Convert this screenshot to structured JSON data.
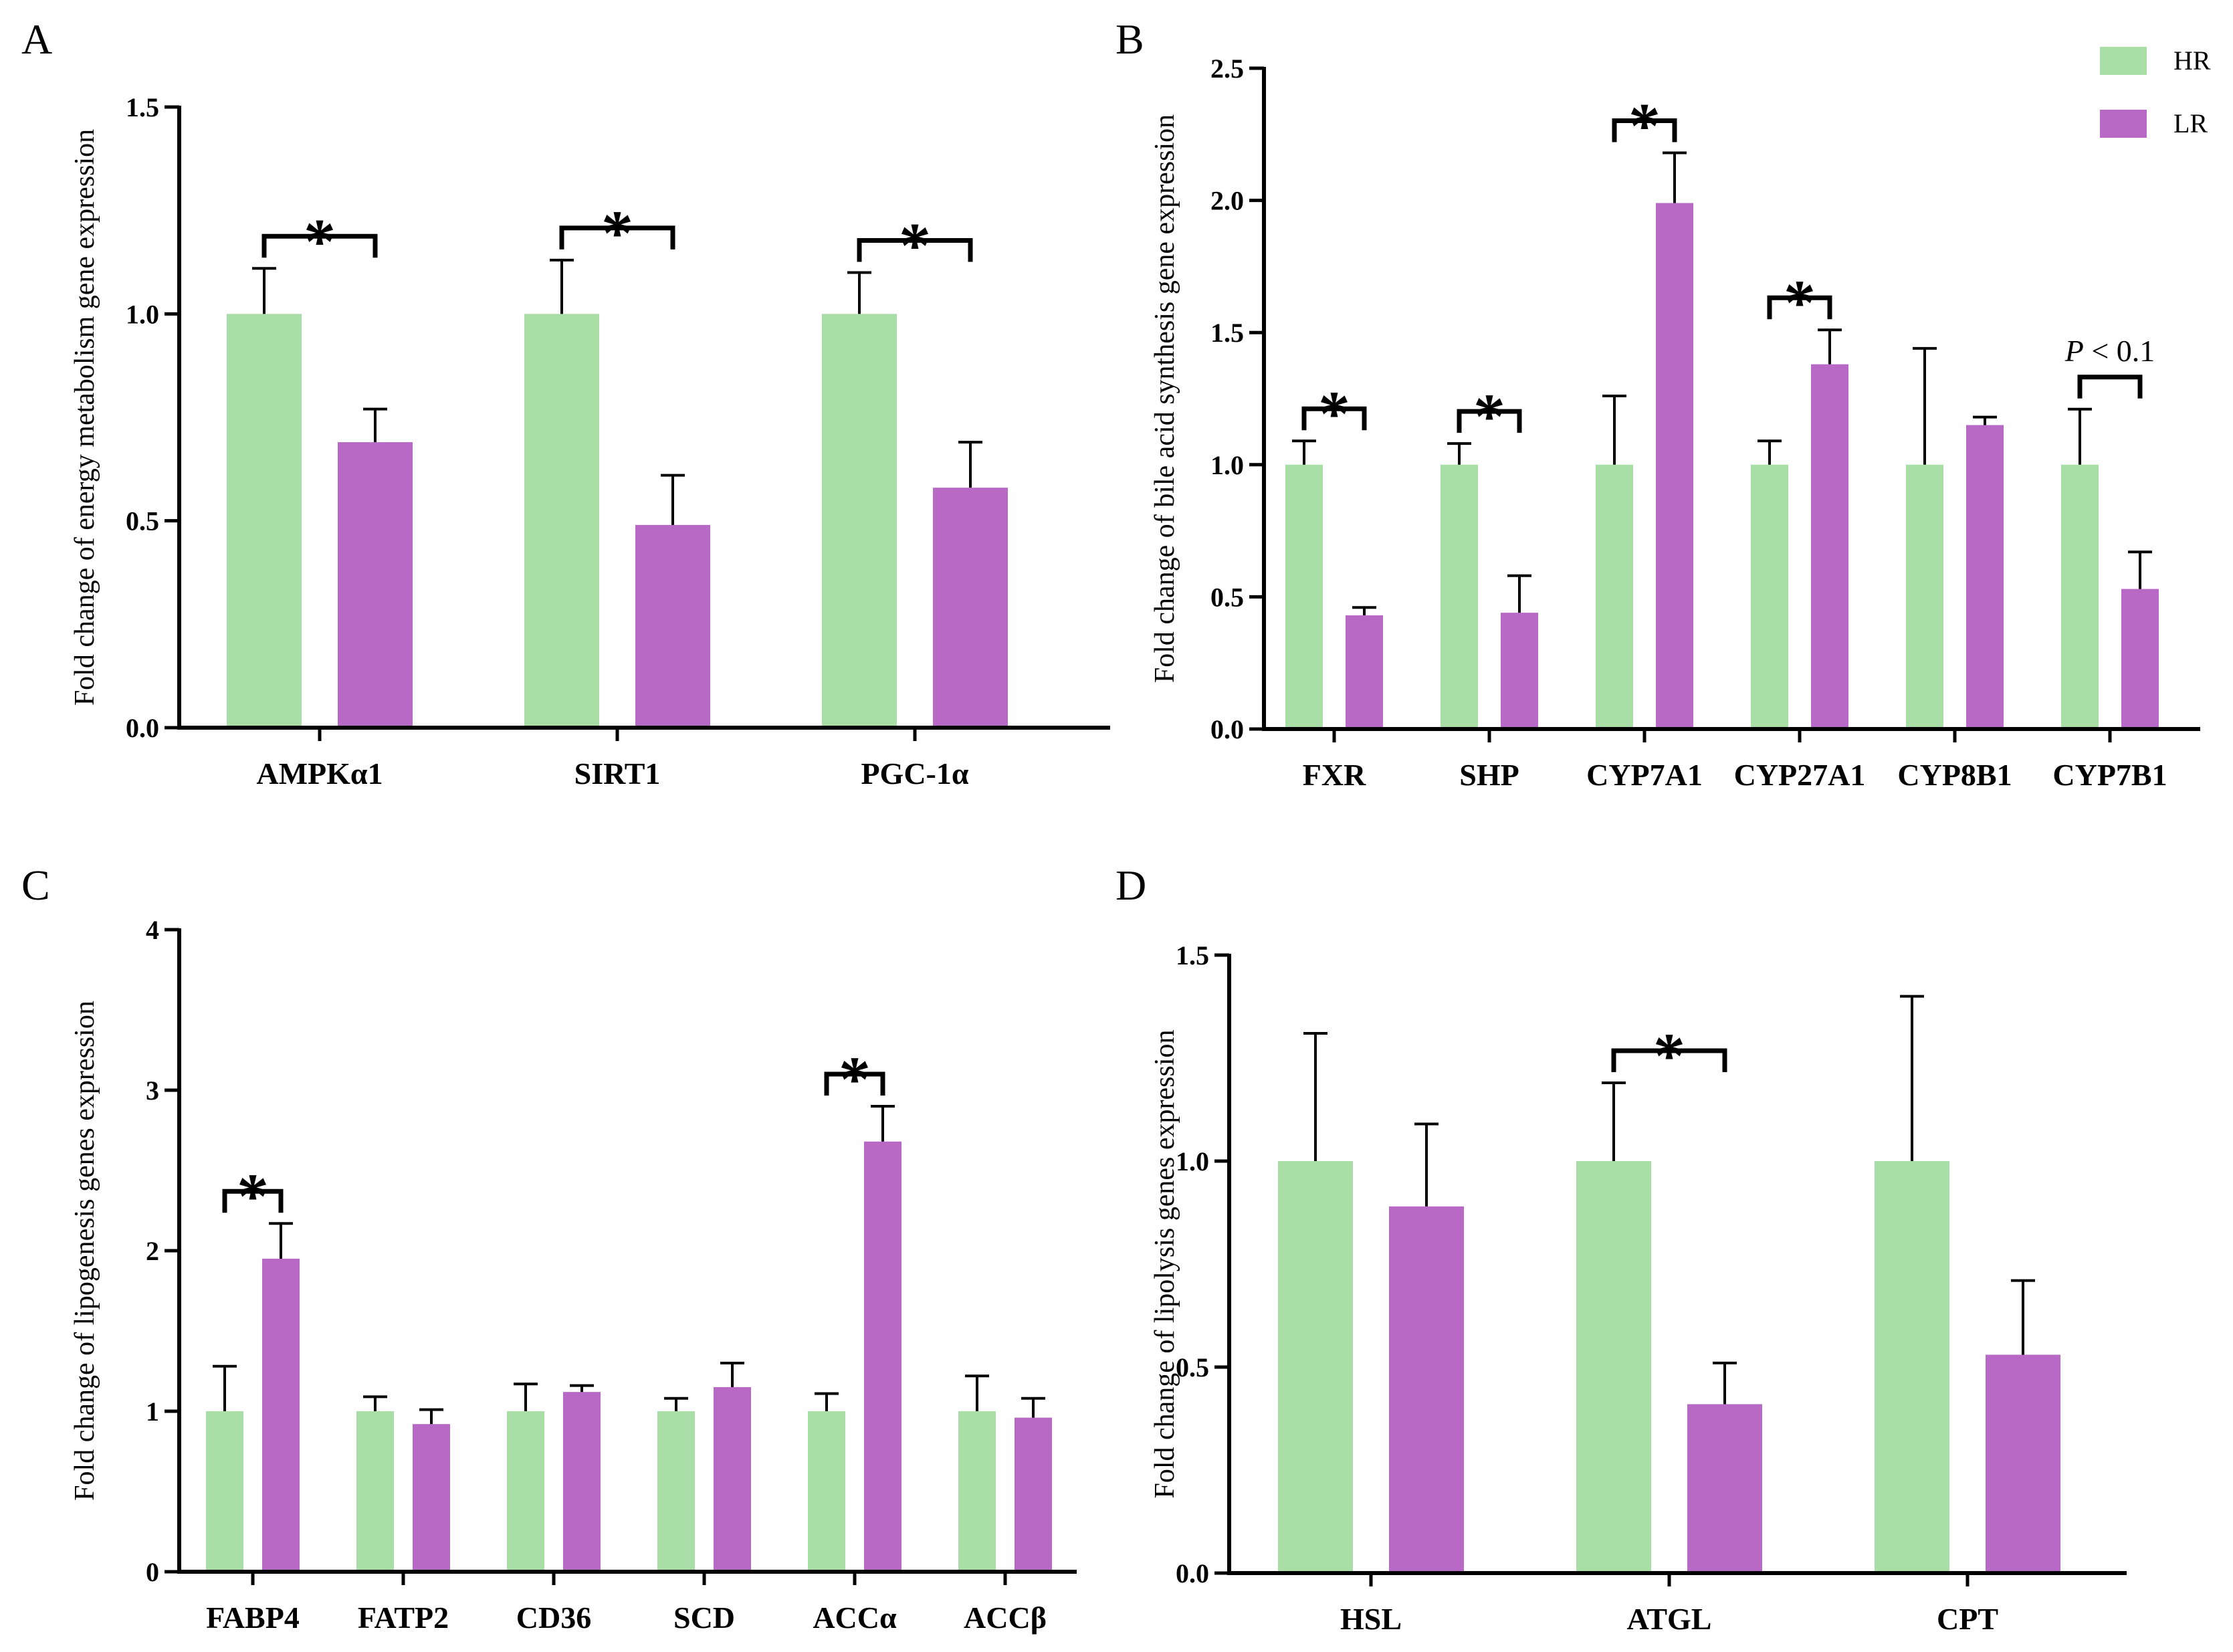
{
  "colors": {
    "HR": "#aadea7",
    "LR": "#b869c6",
    "axis": "#000000"
  },
  "legend": [
    {
      "name": "HR",
      "color": "#aadea7"
    },
    {
      "name": "LR",
      "color": "#b869c6"
    }
  ],
  "chart_data": [
    {
      "type": "bar",
      "panel": "A",
      "ylabel": "Fold change of energy metabolism gene expression",
      "ylim": [
        0,
        1.5
      ],
      "yticks": [
        "0.0",
        "0.5",
        "1.0",
        "1.5"
      ],
      "categories": [
        "AMPKα1",
        "SIRT1",
        "PGC-1α"
      ],
      "series": [
        {
          "name": "HR",
          "values": [
            1.0,
            1.0,
            1.0
          ],
          "errors": [
            0.11,
            0.13,
            0.1
          ]
        },
        {
          "name": "LR",
          "values": [
            0.69,
            0.49,
            0.58
          ],
          "errors": [
            0.08,
            0.12,
            0.11
          ]
        }
      ],
      "annotations": [
        {
          "category": 0,
          "text": "*"
        },
        {
          "category": 1,
          "text": "*"
        },
        {
          "category": 2,
          "text": "*"
        }
      ]
    },
    {
      "type": "bar",
      "panel": "B",
      "ylabel": "Fold change of bile acid synthesis gene expression",
      "ylim": [
        0,
        2.5
      ],
      "yticks": [
        "0.0",
        "0.5",
        "1.0",
        "1.5",
        "2.0",
        "2.5"
      ],
      "categories": [
        "FXR",
        "SHP",
        "CYP7A1",
        "CYP27A1",
        "CYP8B1",
        "CYP7B1"
      ],
      "series": [
        {
          "name": "HR",
          "values": [
            1.0,
            1.0,
            1.0,
            1.0,
            1.0,
            1.0
          ],
          "errors": [
            0.09,
            0.08,
            0.26,
            0.09,
            0.44,
            0.21
          ]
        },
        {
          "name": "LR",
          "values": [
            0.43,
            0.44,
            1.99,
            1.38,
            1.15,
            0.53
          ],
          "errors": [
            0.03,
            0.14,
            0.19,
            0.13,
            0.03,
            0.14
          ]
        }
      ],
      "annotations": [
        {
          "category": 0,
          "text": "*"
        },
        {
          "category": 1,
          "text": "*"
        },
        {
          "category": 2,
          "text": "*"
        },
        {
          "category": 3,
          "text": "*"
        },
        {
          "category": 5,
          "text_italic": "P",
          "text": " < 0.1"
        }
      ]
    },
    {
      "type": "bar",
      "panel": "C",
      "ylabel": "Fold change of lipogenesis genes expression",
      "ylim": [
        0,
        4
      ],
      "yticks": [
        "0",
        "1",
        "2",
        "3",
        "4"
      ],
      "categories": [
        "FABP4",
        "FATP2",
        "CD36",
        "SCD",
        "ACCα",
        "ACCβ"
      ],
      "series": [
        {
          "name": "HR",
          "values": [
            1.0,
            1.0,
            1.0,
            1.0,
            1.0,
            1.0
          ],
          "errors": [
            0.28,
            0.09,
            0.17,
            0.08,
            0.11,
            0.22
          ]
        },
        {
          "name": "LR",
          "values": [
            1.95,
            0.92,
            1.12,
            1.15,
            2.68,
            0.96
          ],
          "errors": [
            0.22,
            0.09,
            0.04,
            0.15,
            0.22,
            0.12
          ]
        }
      ],
      "annotations": [
        {
          "category": 0,
          "text": "*"
        },
        {
          "category": 4,
          "text": "*"
        }
      ]
    },
    {
      "type": "bar",
      "panel": "D",
      "ylabel": "Fold change of lipolysis genes expression",
      "ylim": [
        0,
        1.5
      ],
      "yticks": [
        "0.0",
        "0.5",
        "1.0",
        "1.5"
      ],
      "categories": [
        "HSL",
        "ATGL",
        "CPT"
      ],
      "series": [
        {
          "name": "HR",
          "values": [
            1.0,
            1.0,
            1.0
          ],
          "errors": [
            0.31,
            0.19,
            0.4
          ]
        },
        {
          "name": "LR",
          "values": [
            0.89,
            0.41,
            0.53
          ],
          "errors": [
            0.2,
            0.1,
            0.18
          ]
        }
      ],
      "annotations": [
        {
          "category": 1,
          "text": "*"
        }
      ]
    }
  ]
}
